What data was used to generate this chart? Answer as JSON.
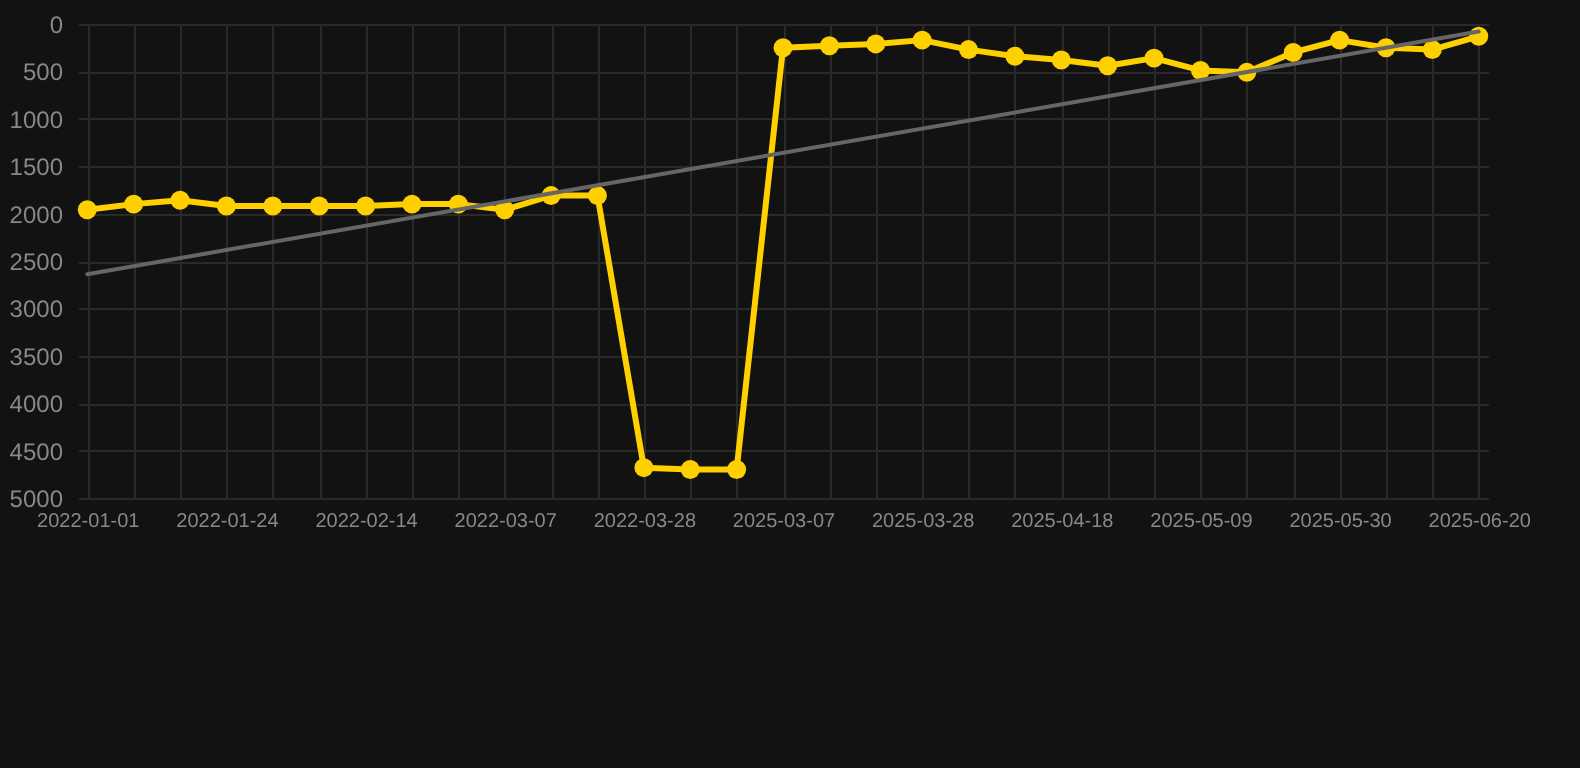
{
  "chart_data": {
    "type": "line",
    "categories": [
      "2022-01-01",
      null,
      null,
      "2022-01-24",
      null,
      null,
      "2022-02-14",
      null,
      null,
      "2022-03-07",
      null,
      null,
      "2022-03-28",
      null,
      null,
      "2025-03-07",
      null,
      null,
      "2025-03-28",
      null,
      null,
      "2025-04-18",
      null,
      null,
      "2025-05-09",
      null,
      null,
      "2025-05-30",
      null,
      null,
      "2025-06-20"
    ],
    "series": [
      {
        "color": "#ffd000",
        "marker": "circle",
        "values": [
          1960,
          1900,
          1860,
          1920,
          1920,
          1920,
          1920,
          1900,
          1900,
          1960,
          1810,
          1810,
          4680,
          4700,
          4700,
          250,
          230,
          210,
          170,
          270,
          340,
          380,
          440,
          360,
          490,
          510,
          300,
          170,
          250,
          270,
          130
        ]
      },
      {
        "type": "line",
        "color": "#666666",
        "marker": "none",
        "values": [
          2640,
          null,
          null,
          null,
          null,
          null,
          null,
          null,
          null,
          null,
          null,
          null,
          null,
          null,
          null,
          null,
          null,
          null,
          null,
          null,
          null,
          null,
          null,
          null,
          null,
          null,
          null,
          null,
          null,
          null,
          80
        ]
      }
    ],
    "ylim": [
      5000,
      0
    ],
    "yticks": [
      0,
      500,
      1000,
      1500,
      2000,
      2500,
      3000,
      3500,
      4000,
      4500,
      5000
    ],
    "grid": true
  }
}
